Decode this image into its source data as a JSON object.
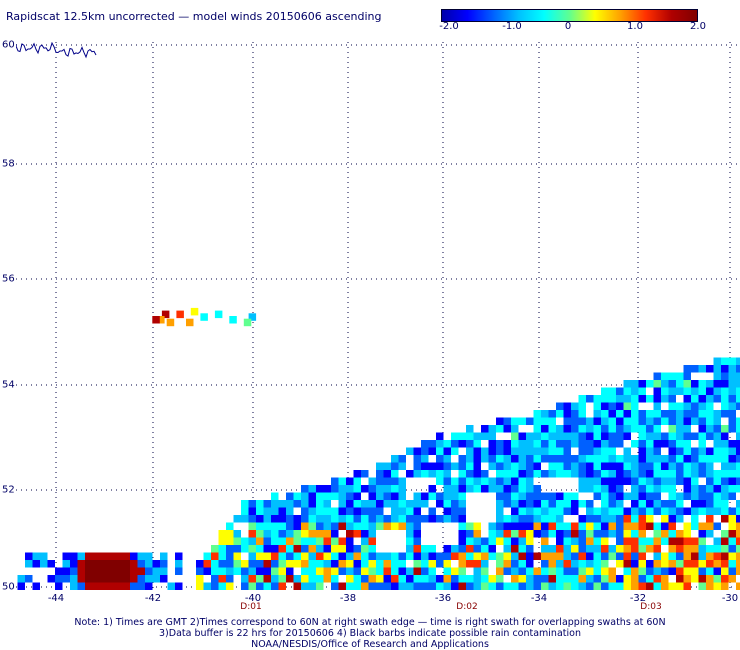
{
  "title": "Rapidscat 12.5km uncorrected — model winds 20150606 ascending",
  "colorbar": {
    "min": -2.0,
    "max": 2.0,
    "ticks": [
      "-2.0",
      "-1.0",
      "0",
      "1.0",
      "2.0"
    ],
    "tick_values": [
      -2.0,
      -1.0,
      0,
      1.0,
      2.0
    ],
    "colors": [
      "#0000aa",
      "#0000ff",
      "#0060ff",
      "#00c0ff",
      "#00ffff",
      "#60ff90",
      "#ffff00",
      "#ffa000",
      "#ff3000",
      "#b00000",
      "#800000"
    ]
  },
  "map": {
    "lon_range": [
      -45.5,
      -30
    ],
    "lat_range": [
      50,
      60
    ],
    "lat_ticks": [
      "50",
      "52",
      "54",
      "56",
      "58",
      "60"
    ],
    "lon_ticks": [
      "-44",
      "-42",
      "-40",
      "-38",
      "-36",
      "-34",
      "-32",
      "-30"
    ],
    "time_labels": [
      {
        "lon": -40,
        "text": "D:01"
      },
      {
        "lon": -36,
        "text": "D:02"
      },
      {
        "lon": -32,
        "text": "D:03"
      }
    ],
    "grid": "dotted",
    "swath_edge_points": [
      [
        -41.2,
        50.4
      ],
      [
        -40.2,
        51.6
      ],
      [
        -38,
        52.1
      ],
      [
        -36,
        52.9
      ],
      [
        -34,
        53.3
      ],
      [
        -32,
        53.9
      ],
      [
        -30.1,
        54.3
      ]
    ]
  },
  "notes": [
    "Note: 1) Times are GMT 2)Times correspond to 60N at right swath edge — time is right swath for overlapping swaths at 60N",
    "3)Data buffer is 22 hrs for 20150606 4) Black barbs indicate possible rain contamination",
    "NOAA/NESDIS/Office of Research and Applications"
  ]
}
